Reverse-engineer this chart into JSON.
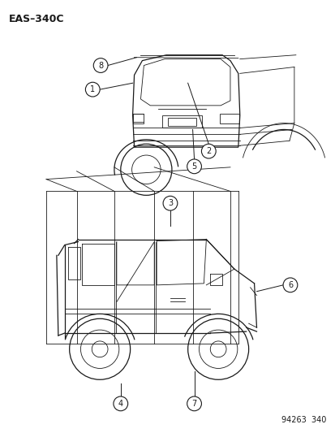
{
  "title_code": "EAS–340C",
  "footer_code": "94263  340",
  "background_color": "#ffffff",
  "line_color": "#1a1a1a",
  "title_fontsize": 9,
  "footer_fontsize": 7,
  "callout_fontsize": 7
}
